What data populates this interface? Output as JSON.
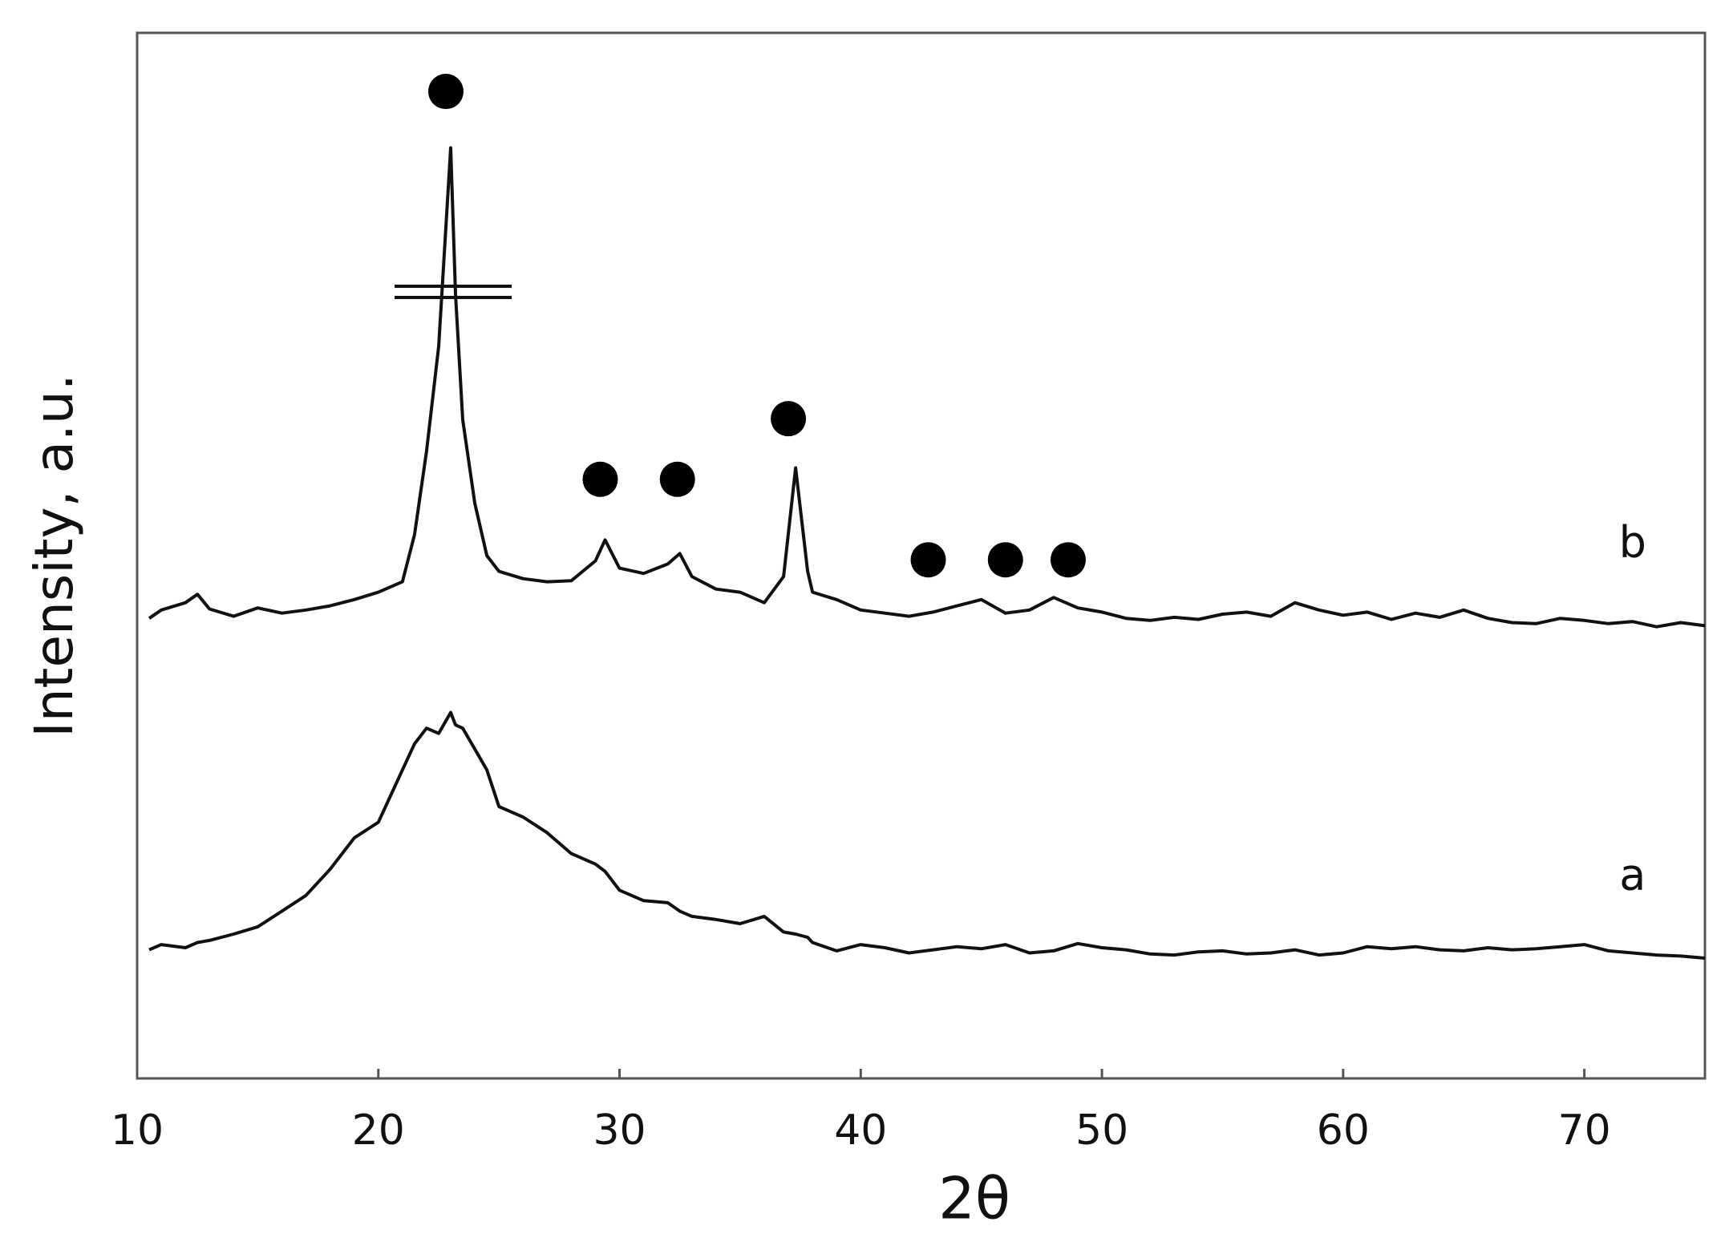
{
  "chart_data": {
    "type": "line",
    "xlabel": "2θ",
    "ylabel": "Intensity, a.u.",
    "xlim": [
      10,
      75
    ],
    "xticks": [
      10,
      20,
      30,
      40,
      50,
      60,
      70
    ],
    "ylim": [
      0,
      100
    ],
    "x": [
      10.5,
      11,
      12,
      12.5,
      13,
      14,
      15,
      16,
      17,
      18,
      19,
      20,
      21,
      21.5,
      22,
      22.5,
      23,
      23.2,
      23.5,
      24,
      24.5,
      25,
      26,
      27,
      28,
      29,
      29.4,
      30,
      31,
      32,
      32.5,
      33,
      34,
      35,
      36,
      36.8,
      37.3,
      37.8,
      38,
      39,
      40,
      41,
      42,
      43,
      44,
      45,
      46,
      47,
      48,
      49,
      50,
      51,
      52,
      53,
      54,
      55,
      56,
      57,
      58,
      59,
      60,
      61,
      62,
      63,
      64,
      65,
      66,
      67,
      68,
      69,
      70,
      71,
      72,
      73,
      74,
      75
    ],
    "series": [
      {
        "name": "b",
        "color": "#111111",
        "values": [
          44.0,
          44.8,
          45.5,
          46.3,
          44.9,
          44.2,
          45.0,
          44.5,
          44.8,
          45.2,
          45.8,
          46.5,
          47.5,
          52,
          60,
          70,
          89,
          75,
          63,
          55,
          50,
          48.5,
          47.8,
          47.5,
          47.6,
          49.5,
          51.5,
          48.8,
          48.3,
          49.2,
          50.2,
          48.0,
          46.8,
          46.5,
          45.5,
          48,
          58.4,
          48.5,
          46.5,
          45.8,
          44.8,
          44.5,
          44.2,
          44.6,
          45.2,
          45.8,
          44.5,
          44.8,
          46.0,
          45.0,
          44.6,
          44.0,
          43.8,
          44.1,
          43.9,
          44.4,
          44.6,
          44.2,
          45.5,
          44.8,
          44.3,
          44.6,
          43.9,
          44.5,
          44.1,
          44.8,
          44.0,
          43.6,
          43.5,
          44.0,
          43.8,
          43.5,
          43.7,
          43.2,
          43.6,
          43.3
        ]
      },
      {
        "name": "a",
        "color": "#111111",
        "values": [
          12.3,
          12.8,
          12.5,
          13.0,
          13.2,
          13.8,
          14.5,
          16.0,
          17.5,
          20.0,
          23.0,
          24.5,
          29.5,
          32.0,
          33.5,
          33.0,
          35.0,
          33.8,
          33.5,
          31.5,
          29.5,
          26.0,
          25.0,
          23.5,
          21.5,
          20.5,
          19.8,
          18.0,
          17.0,
          16.8,
          16.0,
          15.5,
          15.2,
          14.8,
          15.5,
          14.0,
          13.8,
          13.5,
          13.0,
          12.2,
          12.8,
          12.5,
          12.0,
          12.3,
          12.6,
          12.4,
          12.8,
          12.0,
          12.2,
          12.9,
          12.5,
          12.3,
          11.9,
          11.8,
          12.1,
          12.2,
          11.9,
          12.0,
          12.3,
          11.8,
          12.0,
          12.6,
          12.4,
          12.6,
          12.3,
          12.2,
          12.5,
          12.3,
          12.4,
          12.6,
          12.8,
          12.2,
          12.0,
          11.8,
          11.7,
          11.5
        ]
      }
    ],
    "markers": {
      "color": "#000000",
      "x": [
        22.8,
        29.2,
        32.4,
        37.0,
        42.8,
        46.0,
        48.6
      ],
      "y": [
        94.4,
        57.3,
        57.3,
        63.1,
        49.6,
        49.6,
        49.6
      ]
    }
  }
}
